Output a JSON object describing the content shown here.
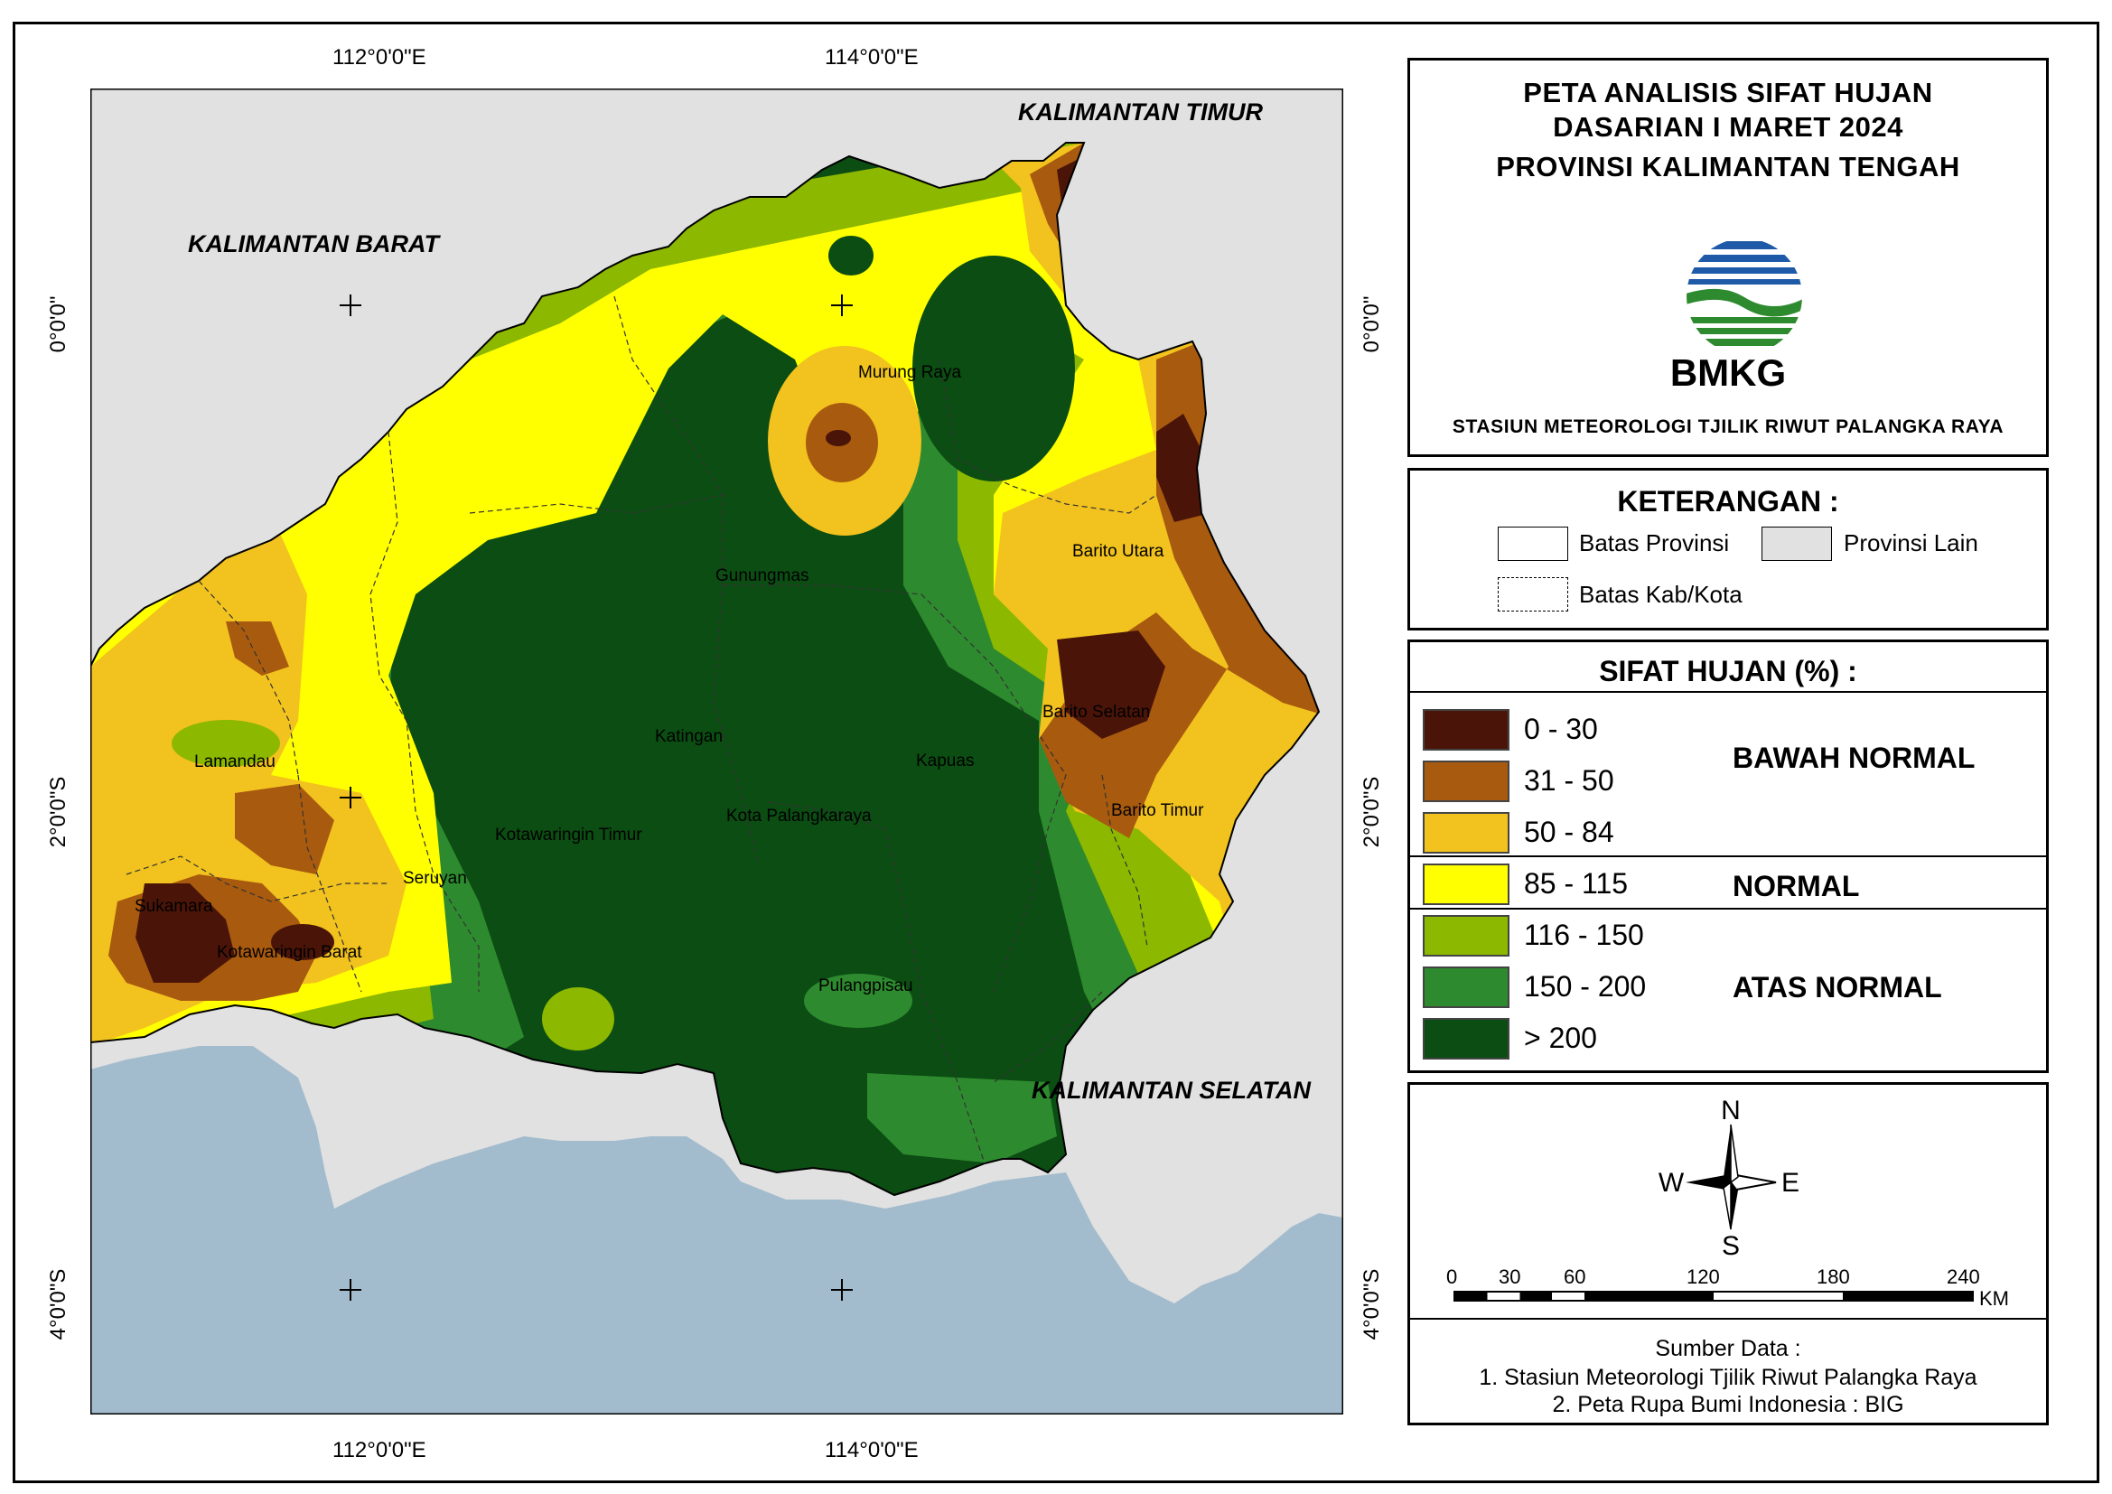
{
  "coordinates": {
    "top_left": "112°0'0\"E",
    "top_right": "114°0'0\"E",
    "bottom_left": "112°0'0\"E",
    "bottom_right": "114°0'0\"E",
    "left_top": "0°0'0\"",
    "left_bottom1": "2°0'0\"S",
    "left_bottom2": "4°0'0\"S",
    "right_top": "0°0'0\"",
    "right_mid": "2°0'0\"S",
    "right_bottom": "4°0'0\"S"
  },
  "map_labels": {
    "provinces": [
      "KALIMANTAN TIMUR",
      "KALIMANTAN BARAT",
      "KALIMANTAN SELATAN"
    ],
    "regencies": [
      "Murung Raya",
      "Gunungmas",
      "Barito Utara",
      "Katingan",
      "Barito Selatan",
      "Lamandau",
      "Kapuas",
      "Kota Palangkaraya",
      "Kotawaringin Timur",
      "Barito Timur",
      "Seruyan",
      "Sukamara",
      "Kotawaringin Barat",
      "Pulangpisau"
    ]
  },
  "title": {
    "line1": "PETA ANALISIS SIFAT HUJAN",
    "line2": "DASARIAN I MARET 2024",
    "line3": "PROVINSI KALIMANTAN TENGAH",
    "logo_text": "BMKG",
    "station": "STASIUN METEOROLOGI TJILIK RIWUT PALANGKA RAYA"
  },
  "keterangan": {
    "heading": "KETERANGAN :",
    "batas_provinsi": "Batas Provinsi",
    "provinsi_lain": "Provinsi Lain",
    "batas_kab": "Batas Kab/Kota"
  },
  "legend": {
    "heading": "SIFAT HUJAN (%) :",
    "classes": [
      {
        "range": "0 - 30",
        "color": "#4a1508"
      },
      {
        "range": "31 - 50",
        "color": "#a85a0e"
      },
      {
        "range": "50 - 84",
        "color": "#f2c21e"
      },
      {
        "range": "85 - 115",
        "color": "#ffff00"
      },
      {
        "range": "116 - 150",
        "color": "#8cb800"
      },
      {
        "range": "150 - 200",
        "color": "#2e8a2e"
      },
      {
        "range": "> 200",
        "color": "#0b4d13"
      }
    ],
    "categories": {
      "below": "BAWAH NORMAL",
      "normal": "NORMAL",
      "above": "ATAS NORMAL"
    }
  },
  "north_arrow": {
    "n": "N",
    "s": "S",
    "e": "E",
    "w": "W"
  },
  "scale_bar": {
    "ticks": [
      "0",
      "30",
      "60",
      "120",
      "180",
      "240"
    ],
    "unit": "KM"
  },
  "source": {
    "heading": "Sumber Data :",
    "line1": "1. Stasiun Meteorologi Tjilik Riwut Palangka Raya",
    "line2": "2. Peta Rupa Bumi Indonesia : BIG"
  },
  "colors": {
    "other_province": "#e1e1e1",
    "sea": "#a3bccd"
  }
}
